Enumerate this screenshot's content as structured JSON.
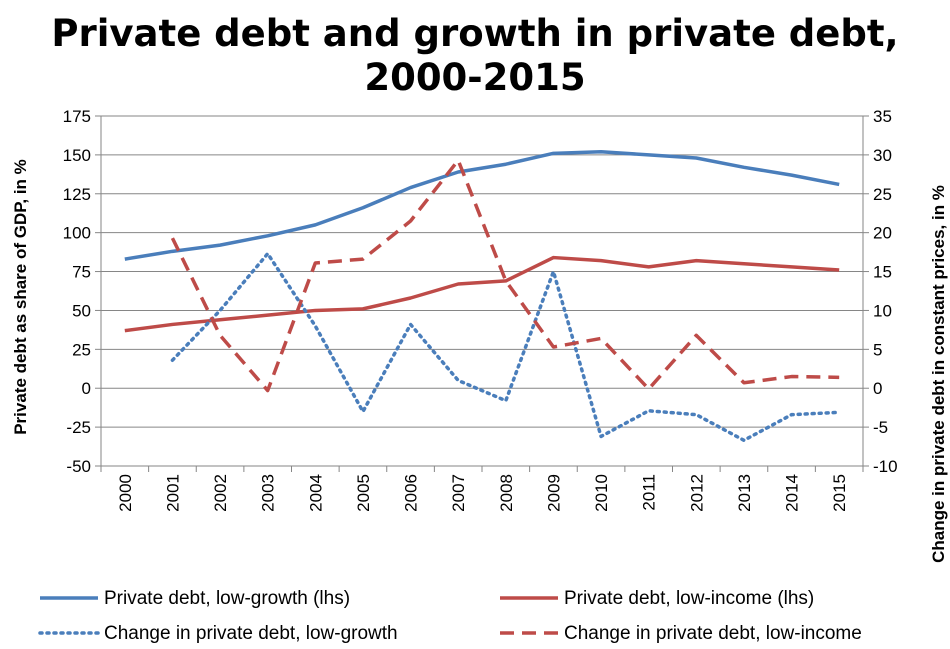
{
  "chart_data": {
    "type": "line",
    "title_line1": "Private debt and growth in private debt,",
    "title_line2": "2000-2015",
    "ylabel_left": "Private debt as share of GDP, in %",
    "ylabel_right": "Change in private debt in constant prices, in %",
    "ylim_left": [
      -50,
      175
    ],
    "ylim_right": [
      -10,
      35
    ],
    "yticks_left": [
      -50,
      -25,
      0,
      25,
      50,
      75,
      100,
      125,
      150,
      175
    ],
    "yticks_right": [
      -10,
      -5,
      0,
      5,
      10,
      15,
      20,
      25,
      30,
      35
    ],
    "grid": true,
    "legend_position": "bottom",
    "categories": [
      "2000",
      "2001",
      "2002",
      "2003",
      "2004",
      "2005",
      "2006",
      "2007",
      "2008",
      "2009",
      "2010",
      "2011",
      "2012",
      "2013",
      "2014",
      "2015"
    ],
    "series": [
      {
        "name": "Private debt, low-growth (lhs)",
        "axis": "left",
        "color": "#4a7ebb",
        "style": "solid",
        "values": [
          83,
          88,
          92,
          98,
          105,
          116,
          129,
          139,
          144,
          151,
          152,
          150,
          148,
          142,
          137,
          131
        ]
      },
      {
        "name": "Private debt, low-income (lhs)",
        "axis": "left",
        "color": "#be4b48",
        "style": "solid",
        "values": [
          37,
          41,
          44,
          47,
          50,
          51,
          58,
          67,
          69,
          84,
          82,
          78,
          82,
          80,
          78,
          76
        ]
      },
      {
        "name": "Change in private debt, low-growth",
        "axis": "right",
        "color": "#4a7ebb",
        "style": "dotted",
        "values": [
          null,
          3.6,
          10.0,
          17.3,
          8.0,
          -3.0,
          8.2,
          1.0,
          -1.6,
          15.0,
          -6.2,
          -2.9,
          -3.4,
          -6.7,
          -3.4,
          -3.1
        ]
      },
      {
        "name": "Change in private debt, low-income",
        "axis": "right",
        "color": "#be4b48",
        "style": "dashed",
        "values": [
          null,
          19.3,
          6.8,
          -0.3,
          16.1,
          16.6,
          21.5,
          29.3,
          13.8,
          5.3,
          6.4,
          -0.1,
          6.8,
          0.7,
          1.5,
          1.4
        ]
      }
    ]
  }
}
